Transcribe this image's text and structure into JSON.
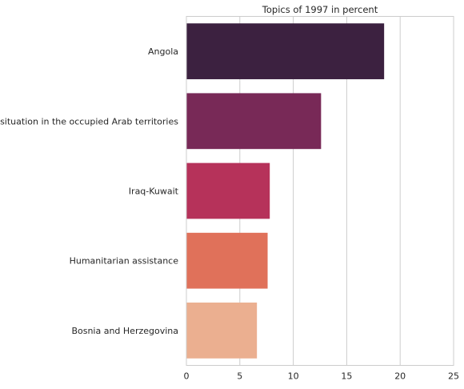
{
  "chart_data": {
    "type": "bar",
    "orientation": "horizontal",
    "title": "Topics of 1997 in percent",
    "xlabel": "",
    "ylabel": "",
    "categories": [
      "Angola",
      "The situation in the occupied Arab territories",
      "Iraq-Kuwait",
      "Humanitarian assistance",
      "Bosnia and Herzegovina"
    ],
    "values": [
      18.5,
      12.6,
      7.8,
      7.6,
      6.6
    ],
    "colors": [
      "#3c2140",
      "#782957",
      "#b6325a",
      "#e0715a",
      "#ebaf90"
    ],
    "xlim": [
      0,
      25
    ],
    "xticks": [
      0,
      5,
      10,
      15,
      20,
      25
    ],
    "grid": "vertical",
    "legend": "none"
  }
}
